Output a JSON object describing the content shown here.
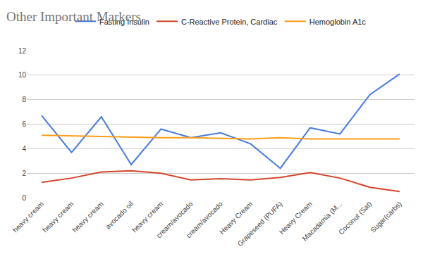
{
  "chart_data": {
    "type": "line",
    "title": "Other Important Markers",
    "categories": [
      "heavy cream",
      "heavy cream",
      "heavy cream",
      "avocado oil",
      "heavy cream",
      "cream/avocado",
      "cream/avocado",
      "Heavy Cream",
      "Grapeseed (PUFA)",
      "Heavy Cream",
      "Macadamia (M...",
      "Coconut (Sat)",
      "Sugar(carbs)"
    ],
    "series": [
      {
        "name": "Fasting Insulin",
        "color": "#4a7bdf",
        "values": [
          6.7,
          3.7,
          6.6,
          2.7,
          5.6,
          4.9,
          5.3,
          4.4,
          2.4,
          5.7,
          5.2,
          8.4,
          10.1
        ]
      },
      {
        "name": "C-Reactive Protein, Cardiac",
        "color": "#d4442a",
        "values": [
          1.25,
          1.6,
          2.1,
          2.2,
          2.0,
          1.45,
          1.55,
          1.45,
          1.65,
          2.05,
          1.6,
          0.85,
          0.5
        ]
      },
      {
        "name": "Hemoglobin A1c",
        "color": "#fb9d17",
        "values": [
          5.1,
          5.05,
          5.0,
          4.95,
          4.9,
          4.9,
          4.85,
          4.8,
          4.9,
          4.8,
          4.8,
          4.8,
          4.8
        ]
      }
    ],
    "ylim": [
      0,
      12
    ],
    "yticks": [
      0,
      2,
      4,
      6,
      8,
      10,
      12
    ],
    "grid": true,
    "legend": "top"
  }
}
